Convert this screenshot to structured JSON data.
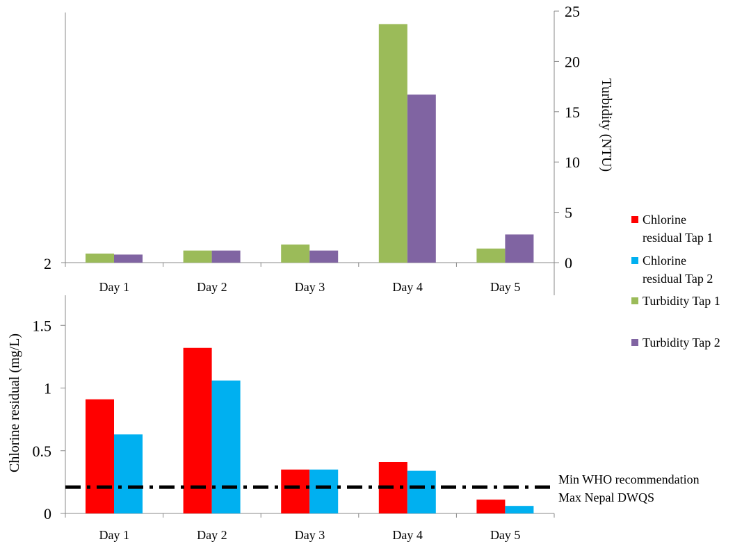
{
  "chart_data": [
    {
      "type": "bar",
      "categories": [
        "Day 1",
        "Day 2",
        "Day 3",
        "Day 4",
        "Day 5"
      ],
      "series": [
        {
          "name": "Turbidity Tap 1",
          "values": [
            0.9,
            1.2,
            1.8,
            23.7,
            1.4
          ],
          "color": "#9BBB59"
        },
        {
          "name": "Turbidity Tap 2",
          "values": [
            0.8,
            1.2,
            1.2,
            16.7,
            2.8
          ],
          "color": "#8064A2"
        }
      ],
      "ylabel": "Turbidity (NTU)",
      "ylim": [
        0,
        25
      ],
      "yticks": [
        "0",
        "5",
        "10",
        "15",
        "20",
        "25"
      ],
      "left_tick": "2"
    },
    {
      "type": "bar",
      "categories": [
        "Day 1",
        "Day 2",
        "Day 3",
        "Day 4",
        "Day 5"
      ],
      "series": [
        {
          "name": "Chlorine residual Tap 1",
          "values": [
            0.91,
            1.32,
            0.35,
            0.41,
            0.11
          ],
          "color": "#FF0000"
        },
        {
          "name": "Chlorine residual Tap 2",
          "values": [
            0.63,
            1.06,
            0.35,
            0.34,
            0.06
          ],
          "color": "#00B0F0"
        }
      ],
      "ylabel": "Chlorine residual (mg/L)",
      "ylim": [
        0,
        2
      ],
      "yticks": [
        "0",
        "0.5",
        "1",
        "1.5"
      ],
      "reference_line": {
        "value": 0.21,
        "style": "dash-dot",
        "color": "#000000"
      },
      "annotations": [
        "Min WHO recommendation",
        "Max Nepal DWQS"
      ]
    }
  ],
  "legend": {
    "placement": "right",
    "items": [
      {
        "lines": [
          "Chlorine",
          "residual Tap 1"
        ],
        "color": "#FF0000"
      },
      {
        "lines": [
          "Chlorine",
          "residual Tap 2"
        ],
        "color": "#00B0F0"
      },
      {
        "lines": [
          "Turbidity Tap 1"
        ],
        "color": "#9BBB59"
      },
      {
        "lines": [
          "Turbidity Tap 2"
        ],
        "color": "#8064A2"
      }
    ]
  }
}
